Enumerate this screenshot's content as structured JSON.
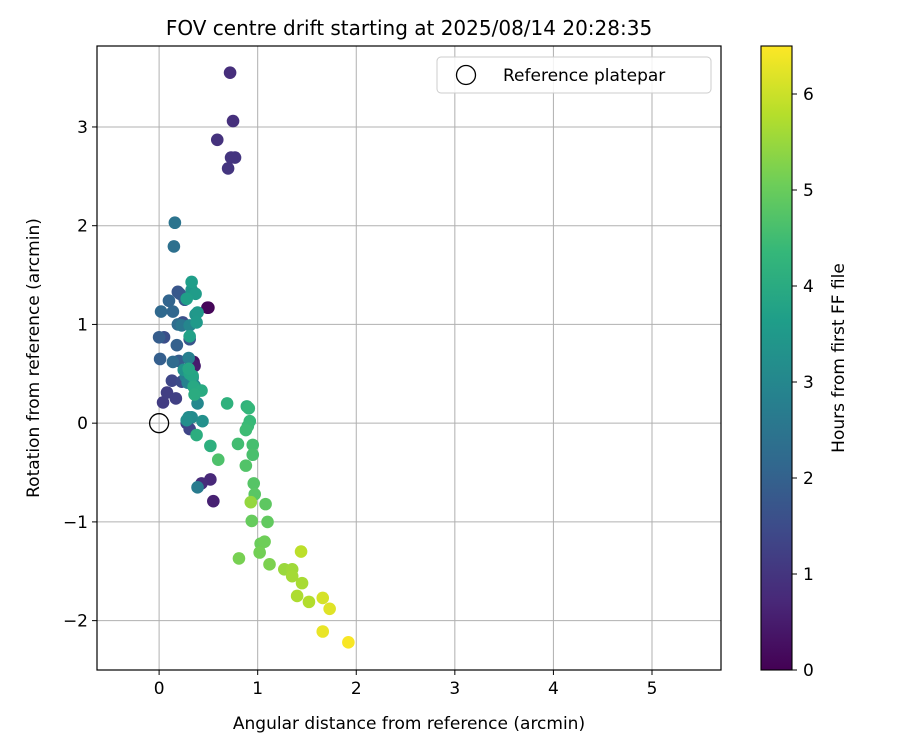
{
  "chart_data": {
    "type": "scatter",
    "title": "FOV centre drift starting at 2025/08/14 20:28:35",
    "xlabel": "Angular distance from reference (arcmin)",
    "ylabel": "Rotation from reference (arcmin)",
    "xlim": [
      -0.63,
      5.7
    ],
    "ylim": [
      -2.5,
      3.82
    ],
    "xticks": [
      0,
      1,
      2,
      3,
      4,
      5
    ],
    "yticks": [
      -2,
      -1,
      0,
      1,
      2,
      3
    ],
    "xtick_labels": [
      "0",
      "1",
      "2",
      "3",
      "4",
      "5"
    ],
    "ytick_labels": [
      "−2",
      "−1",
      "0",
      "1",
      "2",
      "3"
    ],
    "grid": true,
    "legend": {
      "position": "top-right",
      "entries": [
        "Reference platepar"
      ]
    },
    "reference_point": {
      "x": 0,
      "y": 0,
      "label": "Reference platepar"
    },
    "colorbar": {
      "label": "Hours from first FF file",
      "range": [
        0,
        6.5
      ],
      "ticks": [
        0,
        1,
        2,
        3,
        4,
        5,
        6
      ],
      "tick_labels": [
        "0",
        "1",
        "2",
        "3",
        "4",
        "5",
        "6"
      ],
      "colormap": "viridis"
    },
    "series": [
      {
        "points": [
          {
            "x": 0.5,
            "y": 1.17,
            "hours": 0.05
          },
          {
            "x": 0.49,
            "y": 1.17,
            "hours": 0.1
          },
          {
            "x": 0.35,
            "y": 0.62,
            "hours": 0.3
          },
          {
            "x": 0.32,
            "y": 0.58,
            "hours": 0.4
          },
          {
            "x": 0.36,
            "y": 0.58,
            "hours": 0.5
          },
          {
            "x": 0.55,
            "y": -0.79,
            "hours": 0.6
          },
          {
            "x": 0.52,
            "y": -0.57,
            "hours": 0.75
          },
          {
            "x": 0.43,
            "y": -0.61,
            "hours": 0.8
          },
          {
            "x": 0.72,
            "y": 3.55,
            "hours": 0.85
          },
          {
            "x": 0.75,
            "y": 3.06,
            "hours": 0.9
          },
          {
            "x": 0.59,
            "y": 2.87,
            "hours": 0.95
          },
          {
            "x": 0.77,
            "y": 2.69,
            "hours": 1.0
          },
          {
            "x": 0.73,
            "y": 2.69,
            "hours": 1.0
          },
          {
            "x": 0.7,
            "y": 2.58,
            "hours": 1.0
          },
          {
            "x": 0.04,
            "y": 0.21,
            "hours": 1.15
          },
          {
            "x": 0.08,
            "y": 0.31,
            "hours": 1.2
          },
          {
            "x": 0.17,
            "y": 0.25,
            "hours": 1.25
          },
          {
            "x": 0.28,
            "y": 0.0,
            "hours": 1.3
          },
          {
            "x": 0.31,
            "y": -0.06,
            "hours": 1.35
          },
          {
            "x": 0.13,
            "y": 0.43,
            "hours": 1.4
          },
          {
            "x": 0.23,
            "y": 0.42,
            "hours": 1.5
          },
          {
            "x": 0.05,
            "y": 0.87,
            "hours": 1.55
          },
          {
            "x": 0.24,
            "y": 1.02,
            "hours": 1.6
          },
          {
            "x": 0.31,
            "y": 0.85,
            "hours": 1.7
          },
          {
            "x": 0.19,
            "y": 1.33,
            "hours": 1.75
          },
          {
            "x": 0.21,
            "y": 1.31,
            "hours": 1.8
          },
          {
            "x": 0.26,
            "y": 1.25,
            "hours": 1.85
          },
          {
            "x": 0.0,
            "y": 0.87,
            "hours": 1.9
          },
          {
            "x": 0.2,
            "y": 0.63,
            "hours": 1.9
          },
          {
            "x": 0.01,
            "y": 0.65,
            "hours": 1.95
          },
          {
            "x": 0.18,
            "y": 0.79,
            "hours": 2.0
          },
          {
            "x": 0.1,
            "y": 1.24,
            "hours": 2.1
          },
          {
            "x": 0.14,
            "y": 1.13,
            "hours": 2.15
          },
          {
            "x": 0.02,
            "y": 1.13,
            "hours": 2.2
          },
          {
            "x": 0.14,
            "y": 0.62,
            "hours": 2.25
          },
          {
            "x": 0.19,
            "y": 1.0,
            "hours": 2.3
          },
          {
            "x": 0.15,
            "y": 1.79,
            "hours": 2.4
          },
          {
            "x": 0.16,
            "y": 2.03,
            "hours": 2.5
          },
          {
            "x": 0.23,
            "y": 0.99,
            "hours": 2.55
          },
          {
            "x": 0.39,
            "y": -0.65,
            "hours": 2.7
          },
          {
            "x": 0.27,
            "y": 0.47,
            "hours": 2.75
          },
          {
            "x": 0.3,
            "y": 0.66,
            "hours": 2.8
          },
          {
            "x": 0.29,
            "y": 0.41,
            "hours": 2.85
          },
          {
            "x": 0.36,
            "y": 0.38,
            "hours": 2.9
          },
          {
            "x": 0.34,
            "y": 0.46,
            "hours": 2.95
          },
          {
            "x": 0.31,
            "y": 0.99,
            "hours": 3.0
          },
          {
            "x": 0.39,
            "y": 0.2,
            "hours": 3.05
          },
          {
            "x": 0.33,
            "y": 0.06,
            "hours": 3.1
          },
          {
            "x": 0.3,
            "y": 0.06,
            "hours": 3.15
          },
          {
            "x": 0.28,
            "y": 0.03,
            "hours": 3.2
          },
          {
            "x": 0.44,
            "y": 0.02,
            "hours": 3.25
          },
          {
            "x": 0.25,
            "y": 0.54,
            "hours": 3.3
          },
          {
            "x": 0.37,
            "y": 1.1,
            "hours": 3.35
          },
          {
            "x": 0.33,
            "y": 1.35,
            "hours": 3.4
          },
          {
            "x": 0.39,
            "y": 1.12,
            "hours": 3.45
          },
          {
            "x": 0.38,
            "y": 1.02,
            "hours": 3.5
          },
          {
            "x": 0.37,
            "y": 1.31,
            "hours": 3.55
          },
          {
            "x": 0.33,
            "y": 1.43,
            "hours": 3.6
          },
          {
            "x": 0.28,
            "y": 1.26,
            "hours": 3.65
          },
          {
            "x": 0.31,
            "y": 0.88,
            "hours": 3.7
          },
          {
            "x": 0.31,
            "y": 0.5,
            "hours": 3.75
          },
          {
            "x": 0.34,
            "y": 0.48,
            "hours": 3.8
          },
          {
            "x": 0.3,
            "y": 0.55,
            "hours": 3.85
          },
          {
            "x": 0.35,
            "y": 0.37,
            "hours": 3.9
          },
          {
            "x": 0.43,
            "y": 0.33,
            "hours": 3.95
          },
          {
            "x": 0.36,
            "y": 0.29,
            "hours": 4.0
          },
          {
            "x": 0.38,
            "y": -0.12,
            "hours": 4.05
          },
          {
            "x": 0.52,
            "y": -0.23,
            "hours": 4.1
          },
          {
            "x": 0.69,
            "y": 0.2,
            "hours": 4.15
          },
          {
            "x": 0.89,
            "y": 0.17,
            "hours": 4.2
          },
          {
            "x": 0.91,
            "y": 0.15,
            "hours": 4.3
          },
          {
            "x": 0.92,
            "y": 0.02,
            "hours": 4.35
          },
          {
            "x": 0.9,
            "y": -0.03,
            "hours": 4.4
          },
          {
            "x": 0.88,
            "y": -0.07,
            "hours": 4.45
          },
          {
            "x": 0.8,
            "y": -0.21,
            "hours": 4.5
          },
          {
            "x": 0.95,
            "y": -0.22,
            "hours": 4.55
          },
          {
            "x": 0.95,
            "y": -0.32,
            "hours": 4.6
          },
          {
            "x": 0.6,
            "y": -0.37,
            "hours": 4.65
          },
          {
            "x": 0.88,
            "y": -0.43,
            "hours": 4.7
          },
          {
            "x": 0.96,
            "y": -0.61,
            "hours": 4.75
          },
          {
            "x": 0.97,
            "y": -0.72,
            "hours": 4.8
          },
          {
            "x": 1.08,
            "y": -0.82,
            "hours": 4.85
          },
          {
            "x": 1.1,
            "y": -1.0,
            "hours": 4.9
          },
          {
            "x": 0.94,
            "y": -0.99,
            "hours": 4.95
          },
          {
            "x": 1.03,
            "y": -1.22,
            "hours": 5.0
          },
          {
            "x": 1.07,
            "y": -1.2,
            "hours": 5.05
          },
          {
            "x": 1.02,
            "y": -1.31,
            "hours": 5.1
          },
          {
            "x": 0.81,
            "y": -1.37,
            "hours": 5.15
          },
          {
            "x": 1.12,
            "y": -1.43,
            "hours": 5.2
          },
          {
            "x": 0.93,
            "y": -0.8,
            "hours": 5.45
          },
          {
            "x": 1.27,
            "y": -1.48,
            "hours": 5.5
          },
          {
            "x": 1.35,
            "y": -1.48,
            "hours": 5.55
          },
          {
            "x": 1.35,
            "y": -1.55,
            "hours": 5.6
          },
          {
            "x": 1.45,
            "y": -1.62,
            "hours": 5.65
          },
          {
            "x": 1.4,
            "y": -1.75,
            "hours": 5.7
          },
          {
            "x": 1.52,
            "y": -1.81,
            "hours": 5.75
          },
          {
            "x": 1.44,
            "y": -1.3,
            "hours": 5.85
          },
          {
            "x": 1.66,
            "y": -1.77,
            "hours": 6.1
          },
          {
            "x": 1.73,
            "y": -1.88,
            "hours": 6.2
          },
          {
            "x": 1.66,
            "y": -2.11,
            "hours": 6.3
          },
          {
            "x": 1.92,
            "y": -2.22,
            "hours": 6.45
          }
        ]
      }
    ]
  }
}
